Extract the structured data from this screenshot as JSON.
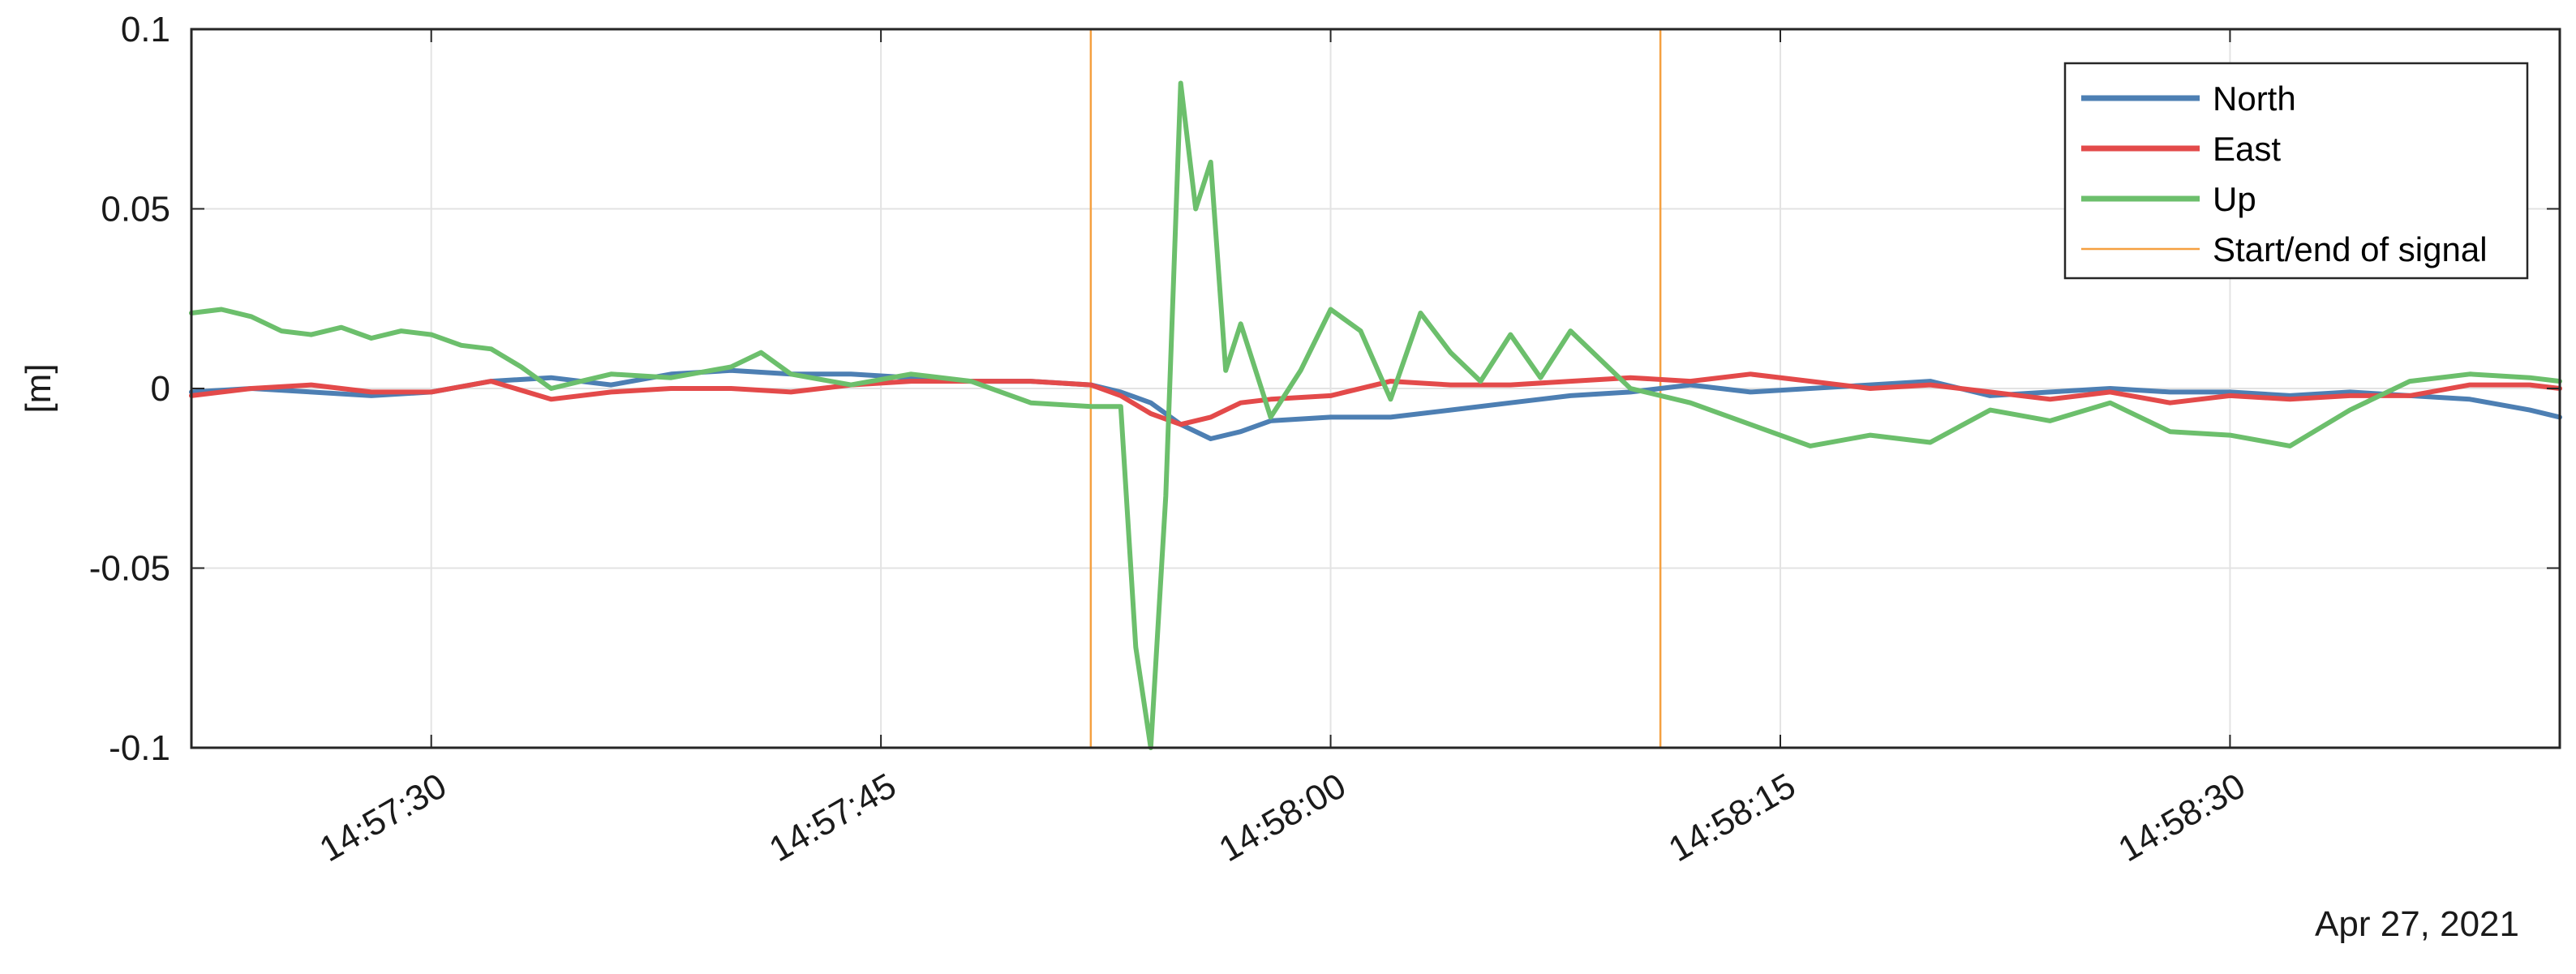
{
  "chart_data": {
    "type": "line",
    "title": "",
    "xlabel": "",
    "ylabel": "[m]",
    "date_label": "Apr 27, 2021",
    "x_start": "14:57:25",
    "x_end": "14:58:41",
    "xlim": [
      "14:57:22",
      "14:58:41"
    ],
    "ylim": [
      -0.1,
      0.1
    ],
    "y_ticks": [
      -0.1,
      -0.05,
      0,
      0.05,
      0.1
    ],
    "y_tick_labels": [
      "-0.1",
      "-0.05",
      "0",
      "0.05",
      "0.1"
    ],
    "x_ticks": [
      "14:57:30",
      "14:57:45",
      "14:58:00",
      "14:58:15",
      "14:58:30"
    ],
    "x_tick_labels": [
      "14:57:30",
      "14:57:45",
      "14:58:00",
      "14:58:15",
      "14:58:30"
    ],
    "grid": true,
    "legend_position": "top-right",
    "markers": {
      "name": "Start/end of signal",
      "color": "#f5a040",
      "x": [
        "14:57:52",
        "14:58:11"
      ]
    },
    "series": [
      {
        "name": "North",
        "color": "#4d7fb3",
        "x": [
          "14:57:22",
          "14:57:24",
          "14:57:26",
          "14:57:28",
          "14:57:30",
          "14:57:32",
          "14:57:34",
          "14:57:36",
          "14:57:38",
          "14:57:40",
          "14:57:42",
          "14:57:44",
          "14:57:46",
          "14:57:48",
          "14:57:50",
          "14:57:52",
          "14:57:53",
          "14:57:54",
          "14:57:55",
          "14:57:56",
          "14:57:57",
          "14:57:58",
          "14:58:00",
          "14:58:02",
          "14:58:04",
          "14:58:06",
          "14:58:08",
          "14:58:10",
          "14:58:12",
          "14:58:14",
          "14:58:16",
          "14:58:18",
          "14:58:20",
          "14:58:22",
          "14:58:24",
          "14:58:26",
          "14:58:28",
          "14:58:30",
          "14:58:32",
          "14:58:34",
          "14:58:36",
          "14:58:38",
          "14:58:40",
          "14:58:41"
        ],
        "values": [
          -0.001,
          0.0,
          -0.001,
          -0.002,
          -0.001,
          0.002,
          0.003,
          0.001,
          0.004,
          0.005,
          0.004,
          0.004,
          0.003,
          0.002,
          0.002,
          0.001,
          -0.001,
          -0.004,
          -0.01,
          -0.014,
          -0.012,
          -0.009,
          -0.008,
          -0.008,
          -0.006,
          -0.004,
          -0.002,
          -0.001,
          0.001,
          -0.001,
          0.0,
          0.001,
          0.002,
          -0.002,
          -0.001,
          0.0,
          -0.001,
          -0.001,
          -0.002,
          -0.001,
          -0.002,
          -0.003,
          -0.006,
          -0.008
        ]
      },
      {
        "name": "East",
        "color": "#e34a4a",
        "x": [
          "14:57:22",
          "14:57:24",
          "14:57:26",
          "14:57:28",
          "14:57:30",
          "14:57:32",
          "14:57:34",
          "14:57:36",
          "14:57:38",
          "14:57:40",
          "14:57:42",
          "14:57:44",
          "14:57:46",
          "14:57:48",
          "14:57:50",
          "14:57:52",
          "14:57:53",
          "14:57:54",
          "14:57:55",
          "14:57:56",
          "14:57:57",
          "14:57:58",
          "14:58:00",
          "14:58:02",
          "14:58:04",
          "14:58:06",
          "14:58:08",
          "14:58:10",
          "14:58:12",
          "14:58:14",
          "14:58:16",
          "14:58:18",
          "14:58:20",
          "14:58:22",
          "14:58:24",
          "14:58:26",
          "14:58:28",
          "14:58:30",
          "14:58:32",
          "14:58:34",
          "14:58:36",
          "14:58:38",
          "14:58:40",
          "14:58:41"
        ],
        "values": [
          -0.002,
          0.0,
          0.001,
          -0.001,
          -0.001,
          0.002,
          -0.003,
          -0.001,
          0.0,
          0.0,
          -0.001,
          0.001,
          0.002,
          0.002,
          0.002,
          0.001,
          -0.002,
          -0.007,
          -0.01,
          -0.008,
          -0.004,
          -0.003,
          -0.002,
          0.002,
          0.001,
          0.001,
          0.002,
          0.003,
          0.002,
          0.004,
          0.002,
          0.0,
          0.001,
          -0.001,
          -0.003,
          -0.001,
          -0.004,
          -0.002,
          -0.003,
          -0.002,
          -0.002,
          0.001,
          0.001,
          0.0
        ]
      },
      {
        "name": "Up",
        "color": "#6cbf6c",
        "x": [
          "14:57:22",
          "14:57:23",
          "14:57:24",
          "14:57:25",
          "14:57:26",
          "14:57:27",
          "14:57:28",
          "14:57:29",
          "14:57:30",
          "14:57:31",
          "14:57:32",
          "14:57:33",
          "14:57:34",
          "14:57:35",
          "14:57:36",
          "14:57:38",
          "14:57:40",
          "14:57:41",
          "14:57:42",
          "14:57:44",
          "14:57:46",
          "14:57:48",
          "14:57:50",
          "14:57:52",
          "14:57:53",
          "14:57:53.5",
          "14:57:54",
          "14:57:54.5",
          "14:57:55",
          "14:57:55.5",
          "14:57:56",
          "14:57:56.5",
          "14:57:57",
          "14:57:58",
          "14:57:59",
          "14:58:00",
          "14:58:01",
          "14:58:02",
          "14:58:03",
          "14:58:04",
          "14:58:05",
          "14:58:06",
          "14:58:07",
          "14:58:08",
          "14:58:10",
          "14:58:12",
          "14:58:14",
          "14:58:16",
          "14:58:18",
          "14:58:20",
          "14:58:22",
          "14:58:24",
          "14:58:26",
          "14:58:28",
          "14:58:30",
          "14:58:32",
          "14:58:34",
          "14:58:36",
          "14:58:38",
          "14:58:40",
          "14:58:41"
        ],
        "values": [
          0.021,
          0.022,
          0.02,
          0.016,
          0.015,
          0.017,
          0.014,
          0.016,
          0.015,
          0.012,
          0.011,
          0.006,
          0.0,
          0.002,
          0.004,
          0.003,
          0.006,
          0.01,
          0.004,
          0.001,
          0.004,
          0.002,
          -0.004,
          -0.005,
          -0.005,
          -0.072,
          -0.1,
          -0.03,
          0.085,
          0.05,
          0.063,
          0.005,
          0.018,
          -0.008,
          0.005,
          0.022,
          0.016,
          -0.003,
          0.021,
          0.01,
          0.002,
          0.015,
          0.003,
          0.016,
          0.0,
          -0.004,
          -0.01,
          -0.016,
          -0.013,
          -0.015,
          -0.006,
          -0.009,
          -0.004,
          -0.012,
          -0.013,
          -0.016,
          -0.006,
          0.002,
          0.004,
          0.003,
          0.002
        ]
      }
    ]
  }
}
